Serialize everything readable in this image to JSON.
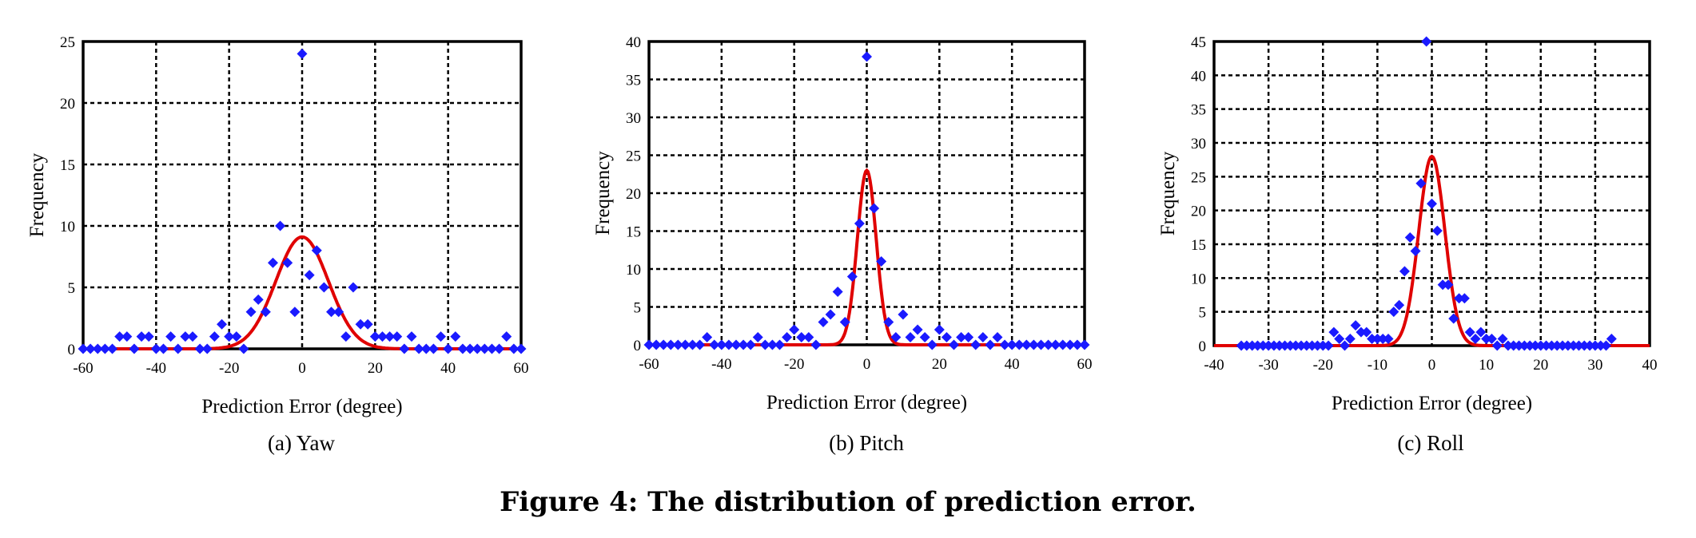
{
  "figure": {
    "caption": "Figure 4: The distribution of prediction error."
  },
  "colors": {
    "points": "#1a1aff",
    "curve": "#e00000",
    "grid": "#000000"
  },
  "chart_data": [
    {
      "type": "scatter",
      "sublabel": "(a)  Yaw",
      "xlabel": "Prediction Error (degree)",
      "ylabel": "Frequency",
      "xlim": [
        -60,
        60
      ],
      "ylim": [
        0,
        25
      ],
      "xticks": [
        -60,
        -40,
        -20,
        0,
        20,
        40,
        60
      ],
      "yticks": [
        0,
        5,
        10,
        15,
        20,
        25
      ],
      "grid": true,
      "series": [
        {
          "marker": "diamond",
          "x": [
            -60,
            -58,
            -56,
            -54,
            -52,
            -50,
            -48,
            -46,
            -44,
            -42,
            -40,
            -38,
            -36,
            -34,
            -32,
            -30,
            -28,
            -26,
            -24,
            -22,
            -20,
            -18,
            -16,
            -14,
            -12,
            -10,
            -8,
            -6,
            -4,
            -2,
            0,
            2,
            4,
            6,
            8,
            10,
            12,
            14,
            16,
            18,
            20,
            22,
            24,
            26,
            28,
            30,
            32,
            34,
            36,
            38,
            40,
            42,
            44,
            46,
            48,
            50,
            52,
            54,
            56,
            58,
            60
          ],
          "y": [
            0,
            0,
            0,
            0,
            0,
            1,
            1,
            0,
            1,
            1,
            0,
            0,
            1,
            0,
            1,
            1,
            0,
            0,
            1,
            2,
            1,
            1,
            0,
            3,
            4,
            3,
            7,
            10,
            7,
            3,
            24,
            6,
            8,
            5,
            3,
            3,
            1,
            5,
            2,
            2,
            1,
            1,
            1,
            1,
            0,
            1,
            0,
            0,
            0,
            1,
            0,
            1,
            0,
            0,
            0,
            0,
            0,
            0,
            1,
            0,
            0
          ]
        }
      ],
      "curve": {
        "mu": 0,
        "sigma": 7.2,
        "peak": 9.1
      }
    },
    {
      "type": "scatter",
      "sublabel": "(b)  Pitch",
      "xlabel": "Prediction Error (degree)",
      "ylabel": "Frequency",
      "xlim": [
        -60,
        60
      ],
      "ylim": [
        0,
        40
      ],
      "xticks": [
        -60,
        -40,
        -20,
        0,
        20,
        40,
        60
      ],
      "yticks": [
        0,
        5,
        10,
        15,
        20,
        25,
        30,
        35,
        40
      ],
      "grid": true,
      "series": [
        {
          "marker": "diamond",
          "x": [
            -60,
            -58,
            -56,
            -54,
            -52,
            -50,
            -48,
            -46,
            -44,
            -42,
            -40,
            -38,
            -36,
            -34,
            -32,
            -30,
            -28,
            -26,
            -24,
            -22,
            -20,
            -18,
            -16,
            -14,
            -12,
            -10,
            -8,
            -6,
            -4,
            -2,
            0,
            2,
            4,
            6,
            8,
            10,
            12,
            14,
            16,
            18,
            20,
            22,
            24,
            26,
            28,
            30,
            32,
            34,
            36,
            38,
            40,
            42,
            44,
            46,
            48,
            50,
            52,
            54,
            56,
            58,
            60
          ],
          "y": [
            0,
            0,
            0,
            0,
            0,
            0,
            0,
            0,
            1,
            0,
            0,
            0,
            0,
            0,
            0,
            1,
            0,
            0,
            0,
            1,
            2,
            1,
            1,
            0,
            3,
            4,
            7,
            3,
            9,
            16,
            38,
            18,
            11,
            3,
            1,
            4,
            1,
            2,
            1,
            0,
            2,
            1,
            0,
            1,
            1,
            0,
            1,
            0,
            1,
            0,
            0,
            0,
            0,
            0,
            0,
            0,
            0,
            0,
            0,
            0,
            0
          ]
        }
      ],
      "curve": {
        "mu": 0,
        "sigma": 2.6,
        "peak": 23
      }
    },
    {
      "type": "scatter",
      "sublabel": "(c)  Roll",
      "xlabel": "Prediction Error (degree)",
      "ylabel": "Frequency",
      "xlim": [
        -40,
        40
      ],
      "ylim": [
        0,
        45
      ],
      "xticks": [
        -40,
        -30,
        -20,
        -10,
        0,
        10,
        20,
        30,
        40
      ],
      "yticks": [
        0,
        5,
        10,
        15,
        20,
        25,
        30,
        35,
        40,
        45
      ],
      "grid": true,
      "series": [
        {
          "marker": "diamond",
          "x": [
            -35,
            -34,
            -33,
            -32,
            -31,
            -30,
            -29,
            -28,
            -27,
            -26,
            -25,
            -24,
            -23,
            -22,
            -21,
            -20,
            -19,
            -18,
            -17,
            -16,
            -15,
            -14,
            -13,
            -12,
            -11,
            -10,
            -9,
            -8,
            -7,
            -6,
            -5,
            -4,
            -3,
            -2,
            -1,
            0,
            1,
            2,
            3,
            4,
            5,
            6,
            7,
            8,
            9,
            10,
            11,
            12,
            13,
            14,
            15,
            16,
            17,
            18,
            19,
            20,
            21,
            22,
            23,
            24,
            25,
            26,
            27,
            28,
            29,
            30,
            31,
            32,
            33
          ],
          "y": [
            0,
            0,
            0,
            0,
            0,
            0,
            0,
            0,
            0,
            0,
            0,
            0,
            0,
            0,
            0,
            0,
            0,
            2,
            1,
            0,
            1,
            3,
            2,
            2,
            1,
            1,
            1,
            1,
            5,
            6,
            11,
            16,
            14,
            24,
            45,
            21,
            17,
            9,
            9,
            4,
            7,
            7,
            2,
            1,
            2,
            1,
            1,
            0,
            1,
            0,
            0,
            0,
            0,
            0,
            0,
            0,
            0,
            0,
            0,
            0,
            0,
            0,
            0,
            0,
            0,
            0,
            0,
            0,
            1
          ]
        }
      ],
      "curve": {
        "mu": 0,
        "sigma": 2.4,
        "peak": 28
      }
    }
  ]
}
